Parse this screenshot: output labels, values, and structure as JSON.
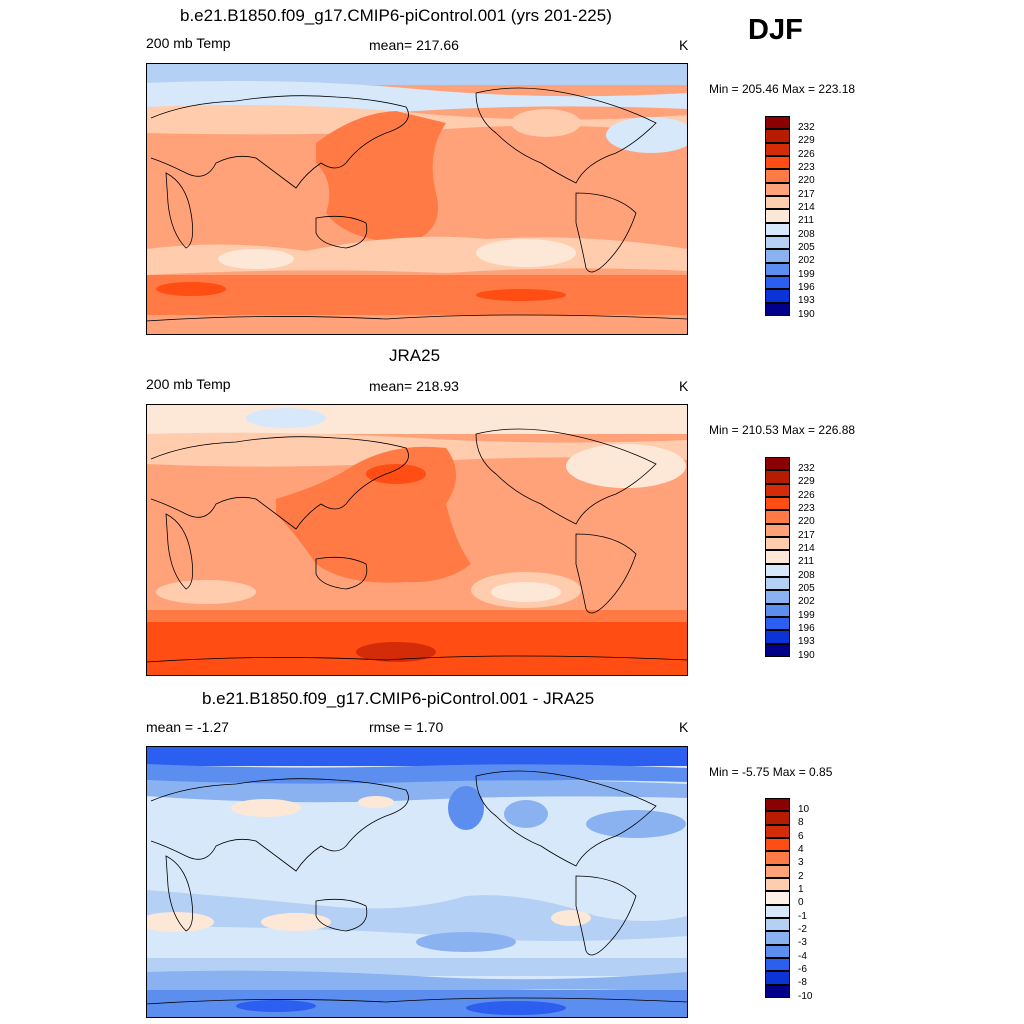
{
  "season": "DJF",
  "panels": [
    {
      "title": "b.e21.B1850.f09_g17.CMIP6-piControl.001 (yrs 201-225)",
      "left": "200 mb Temp",
      "center": "mean= 217.66",
      "units": "K",
      "minmax": "Min = 205.46 Max = 223.18",
      "colorbar_labels": [
        "232",
        "229",
        "226",
        "223",
        "220",
        "217",
        "214",
        "211",
        "208",
        "205",
        "202",
        "199",
        "196",
        "193",
        "190"
      ],
      "colors": [
        "#8b0000",
        "#b71c00",
        "#d42c08",
        "#ff4d14",
        "#ff7a45",
        "#ffa27a",
        "#ffccae",
        "#fde8d8",
        "#d6e8fa",
        "#b4d0f5",
        "#8ab2f0",
        "#5c8ef0",
        "#2c5ef0",
        "#0a34d8",
        "#00008b"
      ]
    },
    {
      "title": "JRA25",
      "left": "200 mb Temp",
      "center": "mean= 218.93",
      "units": "K",
      "minmax": "Min = 210.53 Max = 226.88",
      "colorbar_labels": [
        "232",
        "229",
        "226",
        "223",
        "220",
        "217",
        "214",
        "211",
        "208",
        "205",
        "202",
        "199",
        "196",
        "193",
        "190"
      ],
      "colors": [
        "#8b0000",
        "#b71c00",
        "#d42c08",
        "#ff4d14",
        "#ff7a45",
        "#ffa27a",
        "#ffccae",
        "#fde8d8",
        "#d6e8fa",
        "#b4d0f5",
        "#8ab2f0",
        "#5c8ef0",
        "#2c5ef0",
        "#0a34d8",
        "#00008b"
      ]
    },
    {
      "title": "b.e21.B1850.f09_g17.CMIP6-piControl.001 - JRA25",
      "left": "mean =  -1.27",
      "center": "rmse =   1.70",
      "units": "K",
      "minmax": "Min =  -5.75 Max =   0.85",
      "colorbar_labels": [
        "10",
        "8",
        "6",
        "4",
        "3",
        "2",
        "1",
        "0",
        "-1",
        "-2",
        "-3",
        "-4",
        "-6",
        "-8",
        "-10"
      ],
      "colors": [
        "#8b0000",
        "#b71c00",
        "#d42c08",
        "#ff4d14",
        "#ff7a45",
        "#ffa27a",
        "#ffccae",
        "#fdf0e6",
        "#d6e8fa",
        "#b4d0f5",
        "#8ab2f0",
        "#5c8ef0",
        "#2c5ef0",
        "#0a34d8",
        "#00008b"
      ]
    }
  ]
}
